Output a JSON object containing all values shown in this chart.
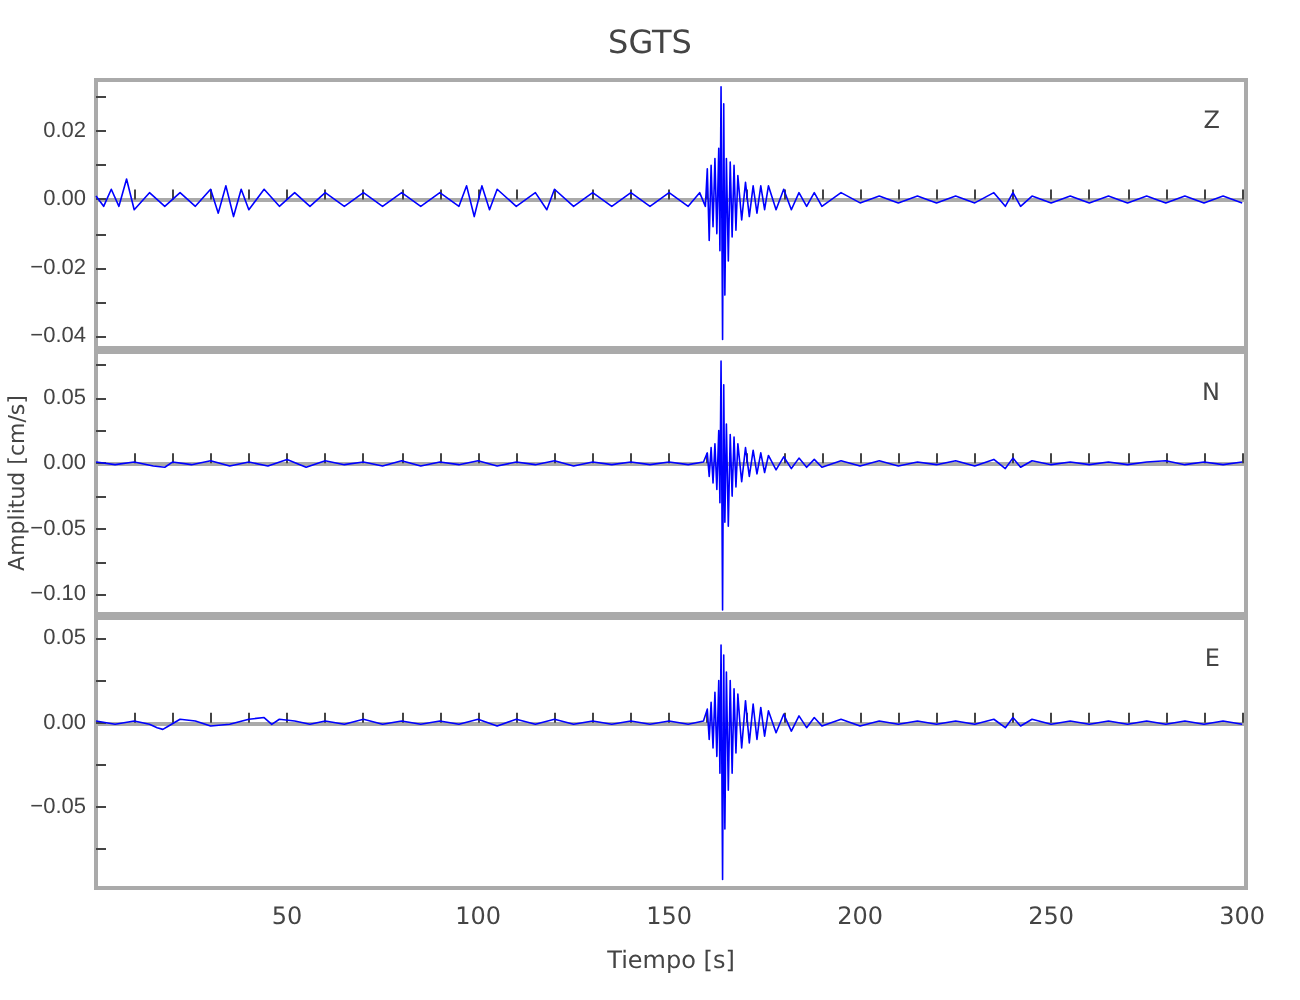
{
  "chart_data": [
    {
      "type": "line",
      "title": "SGTS",
      "annotations": [
        "Z"
      ],
      "tick_labels": "y",
      "marker": "none",
      "line_style": "solid",
      "xlim": [
        0,
        301
      ],
      "xticks": [
        10,
        20,
        30,
        40,
        50,
        60,
        70,
        80,
        90,
        100,
        110,
        120,
        130,
        140,
        150,
        160,
        170,
        180,
        190,
        200,
        210,
        220,
        230,
        240,
        250,
        260,
        270,
        280,
        290,
        300
      ],
      "ylim": [
        -0.0435,
        0.035
      ],
      "yticks": [
        {
          "value": -0.04,
          "label": "−0.04"
        },
        {
          "value": -0.03,
          "label": null
        },
        {
          "value": -0.02,
          "label": "−0.02"
        },
        {
          "value": -0.01,
          "label": null
        },
        {
          "value": 0,
          "label": "0.00"
        },
        {
          "value": 0.01,
          "label": null
        },
        {
          "value": 0.02,
          "label": "0.02"
        },
        {
          "value": 0.03,
          "label": null
        }
      ],
      "series": [
        {
          "color": "#0000ff",
          "x": [
            0,
            2,
            4,
            6,
            8,
            10,
            14,
            18,
            22,
            26,
            30,
            32,
            34,
            36,
            38,
            40,
            44,
            48,
            52,
            56,
            60,
            65,
            70,
            75,
            80,
            85,
            90,
            95,
            97,
            99,
            101,
            103,
            105,
            110,
            115,
            118,
            120,
            125,
            130,
            135,
            140,
            145,
            150,
            155,
            158,
            159.5,
            160,
            160.5,
            161,
            161.5,
            162,
            162.5,
            163,
            163.3,
            163.6,
            164,
            164.3,
            164.6,
            165,
            165.5,
            166,
            166.5,
            167,
            167.5,
            168,
            169,
            170,
            171,
            172,
            173,
            174,
            175,
            176,
            178,
            180,
            182,
            184,
            186,
            188,
            190,
            195,
            200,
            205,
            210,
            215,
            220,
            225,
            230,
            235,
            238,
            240,
            242,
            245,
            250,
            255,
            260,
            265,
            270,
            275,
            280,
            285,
            290,
            295,
            300
          ],
          "values": [
            0.001,
            -0.002,
            0.003,
            -0.002,
            0.006,
            -0.003,
            0.002,
            -0.002,
            0.002,
            -0.002,
            0.003,
            -0.004,
            0.004,
            -0.005,
            0.003,
            -0.003,
            0.003,
            -0.002,
            0.002,
            -0.002,
            0.002,
            -0.002,
            0.002,
            -0.002,
            0.002,
            -0.002,
            0.002,
            -0.002,
            0.004,
            -0.005,
            0.004,
            -0.003,
            0.003,
            -0.002,
            0.002,
            -0.003,
            0.003,
            -0.002,
            0.002,
            -0.002,
            0.002,
            -0.002,
            0.002,
            -0.002,
            0.002,
            -0.002,
            0.009,
            -0.012,
            0.01,
            -0.008,
            0.012,
            -0.01,
            0.015,
            -0.015,
            0.033,
            -0.041,
            0.028,
            -0.028,
            0.012,
            -0.018,
            0.011,
            -0.011,
            0.01,
            -0.009,
            0.007,
            -0.006,
            0.005,
            -0.005,
            0.004,
            -0.004,
            0.004,
            -0.003,
            0.004,
            -0.003,
            0.003,
            -0.003,
            0.002,
            -0.002,
            0.002,
            -0.002,
            0.002,
            -0.001,
            0.001,
            -0.001,
            0.001,
            -0.001,
            0.001,
            -0.001,
            0.002,
            -0.002,
            0.002,
            -0.002,
            0.001,
            -0.001,
            0.001,
            -0.001,
            0.001,
            -0.001,
            0.001,
            -0.001,
            0.001,
            -0.001,
            0.001,
            -0.001
          ]
        }
      ]
    },
    {
      "type": "line",
      "ylabel": "Amplitud [cm/s]",
      "annotations": [
        "N"
      ],
      "tick_labels": "y",
      "marker": "none",
      "line_style": "solid",
      "xlim": [
        0,
        301
      ],
      "xticks": [
        10,
        20,
        30,
        40,
        50,
        60,
        70,
        80,
        90,
        100,
        110,
        120,
        130,
        140,
        150,
        160,
        170,
        180,
        190,
        200,
        210,
        220,
        230,
        240,
        250,
        260,
        270,
        280,
        290,
        300
      ],
      "ylim": [
        -0.115,
        0.085
      ],
      "yticks": [
        {
          "value": -0.1,
          "label": "−0.10"
        },
        {
          "value": -0.075,
          "label": null
        },
        {
          "value": -0.05,
          "label": "−0.05"
        },
        {
          "value": -0.025,
          "label": null
        },
        {
          "value": 0,
          "label": "0.00"
        },
        {
          "value": 0.025,
          "label": null
        },
        {
          "value": 0.05,
          "label": "0.05"
        },
        {
          "value": 0.075,
          "label": null
        }
      ],
      "series": [
        {
          "color": "#0000ff",
          "x": [
            0,
            5,
            10,
            15,
            18,
            20,
            25,
            30,
            35,
            40,
            45,
            50,
            55,
            60,
            65,
            70,
            75,
            80,
            85,
            90,
            95,
            100,
            105,
            110,
            115,
            120,
            125,
            130,
            135,
            140,
            145,
            150,
            155,
            159,
            160,
            160.5,
            161,
            161.5,
            162,
            162.5,
            163,
            163.3,
            163.6,
            164,
            164.3,
            164.6,
            165,
            165.5,
            166,
            166.5,
            167,
            167.5,
            168,
            169,
            170,
            171,
            172,
            173,
            174,
            175,
            176,
            178,
            180,
            182,
            184,
            186,
            188,
            190,
            195,
            200,
            205,
            210,
            215,
            220,
            225,
            230,
            235,
            238,
            240,
            242,
            245,
            250,
            255,
            260,
            265,
            270,
            275,
            280,
            285,
            290,
            295,
            300
          ],
          "values": [
            0.001,
            -0.001,
            0.001,
            -0.002,
            -0.003,
            0.001,
            -0.001,
            0.002,
            -0.002,
            0.001,
            -0.002,
            0.003,
            -0.003,
            0.002,
            -0.001,
            0.001,
            -0.002,
            0.002,
            -0.002,
            0.001,
            -0.001,
            0.002,
            -0.002,
            0.001,
            -0.001,
            0.002,
            -0.002,
            0.001,
            -0.001,
            0.001,
            -0.001,
            0.001,
            -0.001,
            0.001,
            0.008,
            -0.01,
            0.012,
            -0.015,
            0.015,
            -0.02,
            0.025,
            -0.03,
            0.078,
            -0.112,
            0.06,
            -0.045,
            0.03,
            -0.048,
            0.022,
            -0.025,
            0.02,
            -0.018,
            0.015,
            -0.014,
            0.012,
            -0.01,
            0.01,
            -0.008,
            0.008,
            -0.007,
            0.006,
            -0.005,
            0.005,
            -0.004,
            0.004,
            -0.003,
            0.003,
            -0.003,
            0.002,
            -0.002,
            0.002,
            -0.002,
            0.001,
            -0.001,
            0.002,
            -0.002,
            0.003,
            -0.004,
            0.004,
            -0.003,
            0.002,
            -0.001,
            0.001,
            -0.001,
            0.001,
            -0.001,
            0.001,
            0.002,
            -0.001,
            0.001,
            -0.001,
            0.001
          ]
        }
      ]
    },
    {
      "type": "line",
      "xlabel": "Tiempo [s]",
      "annotations": [
        "E"
      ],
      "marker": "none",
      "line_style": "solid",
      "xlim": [
        0,
        301
      ],
      "xticks": [
        {
          "value": 10,
          "label": null
        },
        {
          "value": 20,
          "label": null
        },
        {
          "value": 30,
          "label": null
        },
        {
          "value": 40,
          "label": null
        },
        {
          "value": 50,
          "label": "50"
        },
        {
          "value": 60,
          "label": null
        },
        {
          "value": 70,
          "label": null
        },
        {
          "value": 80,
          "label": null
        },
        {
          "value": 90,
          "label": null
        },
        {
          "value": 100,
          "label": "100"
        },
        {
          "value": 110,
          "label": null
        },
        {
          "value": 120,
          "label": null
        },
        {
          "value": 130,
          "label": null
        },
        {
          "value": 140,
          "label": null
        },
        {
          "value": 150,
          "label": "150"
        },
        {
          "value": 160,
          "label": null
        },
        {
          "value": 170,
          "label": null
        },
        {
          "value": 180,
          "label": null
        },
        {
          "value": 190,
          "label": null
        },
        {
          "value": 200,
          "label": "200"
        },
        {
          "value": 210,
          "label": null
        },
        {
          "value": 220,
          "label": null
        },
        {
          "value": 230,
          "label": null
        },
        {
          "value": 240,
          "label": null
        },
        {
          "value": 250,
          "label": "250"
        },
        {
          "value": 260,
          "label": null
        },
        {
          "value": 270,
          "label": null
        },
        {
          "value": 280,
          "label": null
        },
        {
          "value": 290,
          "label": null
        },
        {
          "value": 300,
          "label": "300"
        }
      ],
      "ylim": [
        -0.098,
        0.062
      ],
      "yticks": [
        {
          "value": -0.075,
          "label": null
        },
        {
          "value": -0.05,
          "label": "−0.05"
        },
        {
          "value": -0.025,
          "label": null
        },
        {
          "value": 0,
          "label": "0.00"
        },
        {
          "value": 0.025,
          "label": null
        },
        {
          "value": 0.05,
          "label": "0.05"
        }
      ],
      "series": [
        {
          "color": "#0000ff",
          "x": [
            0,
            5,
            10,
            14,
            16,
            17.5,
            19,
            22,
            26,
            30,
            35,
            40,
            44,
            46,
            48,
            52,
            56,
            60,
            65,
            70,
            75,
            80,
            85,
            90,
            95,
            100,
            105,
            110,
            115,
            120,
            125,
            130,
            135,
            140,
            145,
            150,
            155,
            159,
            160,
            160.5,
            161,
            161.5,
            162,
            162.5,
            163,
            163.3,
            163.6,
            164,
            164.3,
            164.6,
            165,
            165.5,
            166,
            166.5,
            167,
            167.5,
            168,
            169,
            170,
            171,
            172,
            173,
            174,
            175,
            176,
            178,
            180,
            182,
            184,
            186,
            188,
            190,
            195,
            200,
            205,
            210,
            215,
            220,
            225,
            230,
            235,
            238,
            240,
            242,
            245,
            250,
            255,
            260,
            265,
            270,
            275,
            280,
            285,
            290,
            295,
            300
          ],
          "values": [
            0.001,
            -0.001,
            0.001,
            -0.001,
            -0.003,
            -0.004,
            -0.002,
            0.002,
            0.001,
            -0.002,
            -0.001,
            0.002,
            0.003,
            -0.001,
            0.002,
            0.001,
            -0.001,
            0.001,
            -0.001,
            0.002,
            -0.001,
            0.001,
            -0.001,
            0.001,
            -0.001,
            0.002,
            -0.002,
            0.002,
            -0.001,
            0.002,
            -0.001,
            0.001,
            -0.001,
            0.001,
            -0.001,
            0.001,
            -0.001,
            0.001,
            0.008,
            -0.01,
            0.012,
            -0.015,
            0.018,
            -0.02,
            0.025,
            -0.03,
            0.046,
            -0.093,
            0.04,
            -0.063,
            0.03,
            -0.04,
            0.025,
            -0.03,
            0.02,
            -0.018,
            0.017,
            -0.015,
            0.013,
            -0.012,
            0.011,
            -0.01,
            0.009,
            -0.008,
            0.007,
            -0.006,
            0.005,
            -0.005,
            0.004,
            -0.003,
            0.003,
            -0.002,
            0.002,
            -0.002,
            0.001,
            -0.001,
            0.001,
            -0.001,
            0.001,
            -0.001,
            0.002,
            -0.003,
            0.003,
            -0.002,
            0.002,
            -0.001,
            0.001,
            -0.001,
            0.001,
            -0.001,
            0.001,
            -0.001,
            0.001,
            -0.001,
            0.001,
            -0.001
          ]
        }
      ]
    }
  ]
}
